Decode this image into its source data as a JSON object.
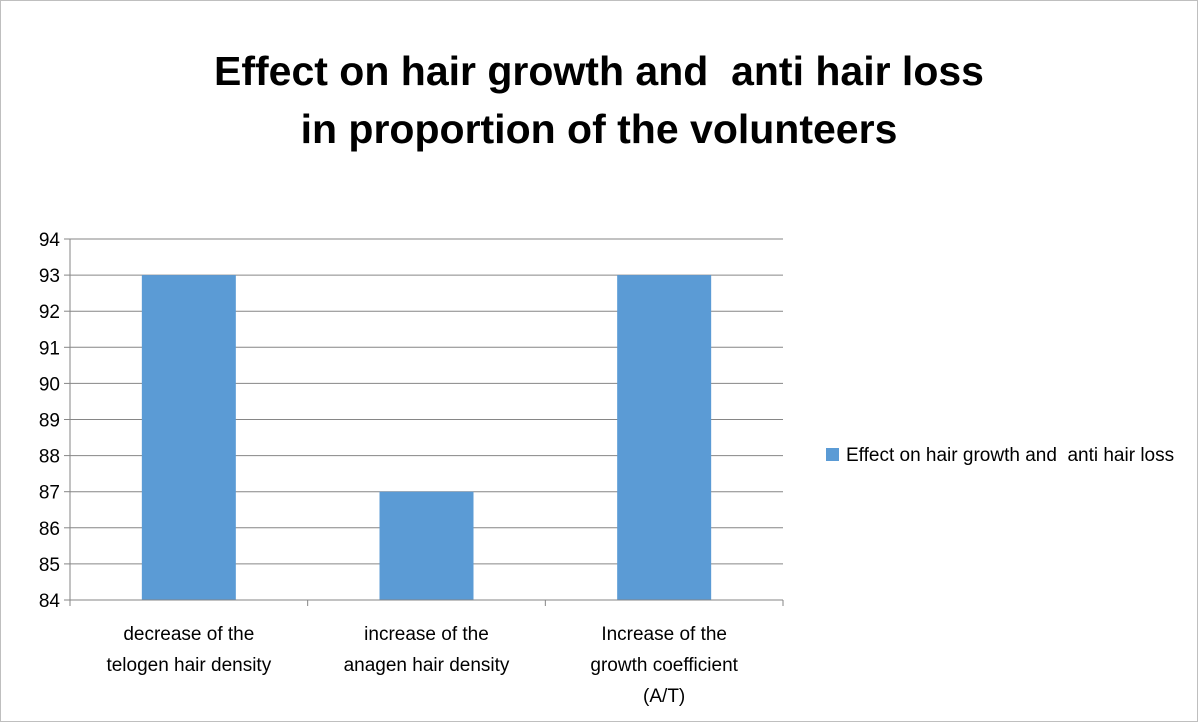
{
  "chart_data": {
    "type": "bar",
    "title_lines": [
      "Effect on hair growth and  anti hair loss",
      "in proportion of the volunteers"
    ],
    "categories": [
      [
        "decrease of the",
        "telogen hair density"
      ],
      [
        "increase of the",
        "anagen hair density"
      ],
      [
        "Increase of the",
        "growth coefficient",
        "(A/T)"
      ]
    ],
    "series": [
      {
        "name": "Effect on hair growth and  anti hair loss",
        "values": [
          93,
          87,
          93
        ]
      }
    ],
    "ylim": [
      84,
      94
    ],
    "yticks": [
      "84",
      "85",
      "86",
      "87",
      "88",
      "89",
      "90",
      "91",
      "92",
      "93",
      "94"
    ],
    "grid": true,
    "legend_position": "right",
    "xlabel": "",
    "ylabel": ""
  },
  "colors": {
    "bar": "#5b9bd5",
    "grid": "#868686",
    "axis": "#868686",
    "frame": "#bfbfbf"
  }
}
